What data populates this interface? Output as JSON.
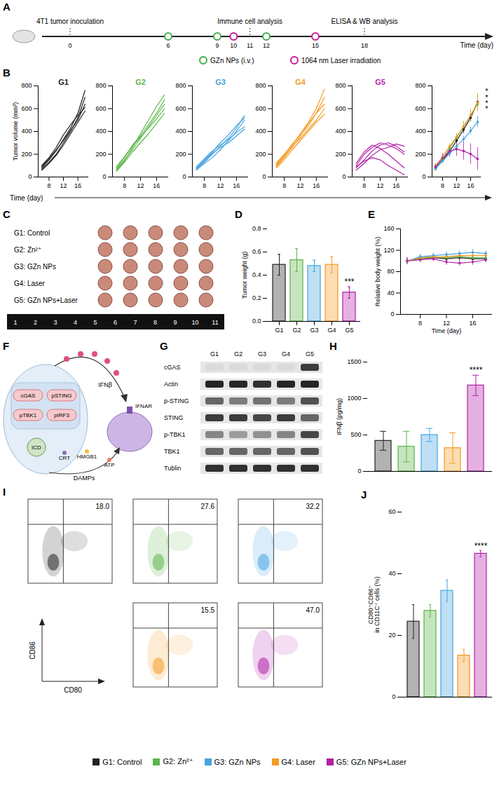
{
  "timeline": {
    "panel": "A",
    "xlabel": "Time (day)",
    "ticks": [
      0,
      6,
      9,
      10,
      11,
      12,
      15,
      18
    ],
    "events": [
      {
        "day": 0,
        "label": "4T1 tumor inoculation"
      },
      {
        "day": 11,
        "label": "Immune cell analysis"
      },
      {
        "day": 18,
        "label": "ELISA & WB analysis"
      }
    ],
    "series": [
      {
        "name": "GZn NPs (i.v.)",
        "color": "#3fae49",
        "days": [
          6,
          9,
          12
        ]
      },
      {
        "name": "1064 nm Laser irradiation",
        "color": "#c2189f",
        "days": [
          10,
          15
        ]
      }
    ]
  },
  "chart_data": [
    {
      "panel": "B",
      "type": "line",
      "title": "G1",
      "color": "#222222",
      "ylabel": "Tumor volume (mm³)",
      "xlabel": "Time (day)",
      "x": [
        6,
        8,
        10,
        12,
        14,
        16,
        18
      ],
      "xlim": [
        5,
        19
      ],
      "xticks": [
        8,
        12,
        16
      ],
      "ylim": [
        0,
        800
      ],
      "yticks": [
        0,
        200,
        400,
        600,
        800
      ],
      "series": [
        {
          "values": [
            80,
            150,
            230,
            330,
            430,
            560,
            760
          ]
        },
        {
          "values": [
            70,
            130,
            200,
            300,
            400,
            520,
            700
          ]
        },
        {
          "values": [
            90,
            160,
            240,
            320,
            410,
            500,
            640
          ]
        },
        {
          "values": [
            100,
            170,
            260,
            370,
            460,
            540,
            610
          ]
        },
        {
          "values": [
            60,
            120,
            190,
            280,
            380,
            480,
            580
          ]
        }
      ]
    },
    {
      "panel": "B",
      "type": "line",
      "title": "G2",
      "color": "#5bb548",
      "x": [
        6,
        8,
        10,
        12,
        14,
        16,
        18
      ],
      "xlim": [
        5,
        19
      ],
      "xticks": [
        8,
        12,
        16
      ],
      "ylim": [
        0,
        800
      ],
      "yticks": [
        0,
        200,
        400,
        600,
        800
      ],
      "series": [
        {
          "values": [
            60,
            140,
            260,
            380,
            500,
            620,
            720
          ]
        },
        {
          "values": [
            80,
            170,
            280,
            360,
            460,
            560,
            680
          ]
        },
        {
          "values": [
            70,
            150,
            240,
            340,
            440,
            540,
            640
          ]
        },
        {
          "values": [
            90,
            180,
            270,
            350,
            430,
            510,
            600
          ]
        },
        {
          "values": [
            50,
            130,
            220,
            300,
            380,
            470,
            560
          ]
        }
      ]
    },
    {
      "panel": "B",
      "type": "line",
      "title": "G3",
      "color": "#45a3e0",
      "x": [
        6,
        8,
        10,
        12,
        14,
        16,
        18
      ],
      "xlim": [
        5,
        19
      ],
      "xticks": [
        8,
        12,
        16
      ],
      "ylim": [
        0,
        800
      ],
      "yticks": [
        0,
        200,
        400,
        600,
        800
      ],
      "series": [
        {
          "values": [
            70,
            130,
            200,
            270,
            340,
            430,
            540
          ]
        },
        {
          "values": [
            80,
            150,
            220,
            300,
            370,
            450,
            520
          ]
        },
        {
          "values": [
            60,
            120,
            170,
            240,
            320,
            400,
            500
          ]
        },
        {
          "values": [
            90,
            160,
            230,
            280,
            330,
            390,
            440
          ]
        },
        {
          "values": [
            70,
            140,
            210,
            260,
            300,
            360,
            420
          ]
        }
      ]
    },
    {
      "panel": "B",
      "type": "line",
      "title": "G4",
      "color": "#f59a23",
      "x": [
        6,
        8,
        10,
        12,
        14,
        16,
        18
      ],
      "xlim": [
        5,
        19
      ],
      "xticks": [
        8,
        12,
        16
      ],
      "ylim": [
        0,
        800
      ],
      "yticks": [
        0,
        200,
        400,
        600,
        800
      ],
      "series": [
        {
          "values": [
            100,
            180,
            280,
            380,
            480,
            600,
            770
          ]
        },
        {
          "values": [
            120,
            200,
            290,
            370,
            450,
            560,
            700
          ]
        },
        {
          "values": [
            90,
            170,
            260,
            360,
            470,
            560,
            640
          ]
        },
        {
          "values": [
            110,
            190,
            270,
            340,
            420,
            500,
            600
          ]
        },
        {
          "values": [
            80,
            150,
            240,
            320,
            400,
            480,
            550
          ]
        }
      ]
    },
    {
      "panel": "B",
      "type": "line",
      "title": "G5",
      "color": "#b11fa8",
      "x": [
        6,
        8,
        10,
        12,
        14,
        16,
        18
      ],
      "xlim": [
        5,
        19
      ],
      "xticks": [
        8,
        12,
        16
      ],
      "ylim": [
        0,
        800
      ],
      "yticks": [
        0,
        200,
        400,
        600,
        800
      ],
      "series": [
        {
          "values": [
            100,
            200,
            260,
            300,
            280,
            250,
            200
          ]
        },
        {
          "values": [
            80,
            150,
            230,
            280,
            300,
            270,
            220
          ]
        },
        {
          "values": [
            120,
            220,
            280,
            250,
            200,
            140,
            80
          ]
        },
        {
          "values": [
            60,
            120,
            190,
            240,
            260,
            290,
            270
          ]
        },
        {
          "values": [
            90,
            140,
            170,
            150,
            100,
            60,
            20
          ]
        }
      ]
    },
    {
      "panel": "B",
      "type": "line",
      "marker": "circle",
      "annotations": [
        "*",
        "*",
        "*",
        "*"
      ],
      "x": [
        6,
        8,
        10,
        12,
        14,
        16,
        18
      ],
      "xlim": [
        5,
        19
      ],
      "xticks": [
        8,
        12,
        16
      ],
      "ylim": [
        0,
        800
      ],
      "yticks": [
        0,
        200,
        400,
        600,
        800
      ],
      "series": [
        {
          "color": "#222222",
          "values": [
            80,
            146,
            224,
            320,
            416,
            520,
            658
          ],
          "errors": [
            15,
            20,
            30,
            35,
            35,
            35,
            70
          ]
        },
        {
          "color": "#5bb548",
          "values": [
            70,
            154,
            254,
            346,
            442,
            540,
            640
          ],
          "errors": [
            15,
            20,
            25,
            35,
            45,
            55,
            60
          ]
        },
        {
          "color": "#45a3e0",
          "values": [
            74,
            140,
            206,
            270,
            332,
            406,
            484
          ],
          "errors": [
            10,
            15,
            20,
            25,
            30,
            35,
            50
          ]
        },
        {
          "color": "#f59a23",
          "values": [
            100,
            178,
            268,
            354,
            444,
            540,
            652
          ],
          "errors": [
            15,
            20,
            20,
            25,
            35,
            45,
            80
          ]
        },
        {
          "color": "#b11fa8",
          "values": [
            90,
            166,
            226,
            244,
            228,
            202,
            158
          ],
          "errors": [
            25,
            40,
            50,
            60,
            80,
            90,
            100
          ]
        }
      ]
    },
    {
      "panel": "D",
      "type": "bar",
      "ylabel": "Tumor weight (g)",
      "categories": [
        "G1",
        "G2",
        "G3",
        "G4",
        "G5"
      ],
      "values": [
        0.49,
        0.53,
        0.48,
        0.49,
        0.25
      ],
      "errors": [
        0.09,
        0.1,
        0.05,
        0.07,
        0.05
      ],
      "colors": [
        "#222222",
        "#5bb548",
        "#45a3e0",
        "#f59a23",
        "#b11fa8"
      ],
      "ylim": [
        0,
        0.8
      ],
      "yticks": [
        {
          "value": 0,
          "label": "0.0"
        },
        0.2,
        0.4,
        0.6,
        0.8
      ],
      "annotations": [
        {
          "index": 4,
          "text": "***"
        }
      ]
    },
    {
      "panel": "E",
      "type": "line",
      "marker": "circle",
      "ylabel": "Relative body weight (%)",
      "xlabel": "Time (day)",
      "x": [
        6,
        8,
        10,
        12,
        14,
        16,
        18
      ],
      "xlim": [
        5,
        19
      ],
      "xticks": [
        8,
        12,
        16
      ],
      "ylim": [
        0,
        160
      ],
      "yticks": [
        0,
        40,
        80,
        120,
        160
      ],
      "series": [
        {
          "color": "#222222",
          "values": [
            100,
            104,
            106,
            104,
            106,
            104,
            104
          ],
          "errors": [
            6,
            5,
            5,
            6,
            5,
            6,
            5
          ]
        },
        {
          "color": "#5bb548",
          "values": [
            100,
            106,
            108,
            106,
            108,
            106,
            106
          ],
          "errors": [
            6,
            5,
            5,
            6,
            5,
            6,
            5
          ]
        },
        {
          "color": "#45a3e0",
          "values": [
            100,
            108,
            110,
            112,
            114,
            116,
            114
          ],
          "errors": [
            6,
            5,
            5,
            6,
            5,
            6,
            5
          ]
        },
        {
          "color": "#f59a23",
          "values": [
            100,
            105,
            107,
            108,
            110,
            110,
            110
          ],
          "errors": [
            6,
            5,
            5,
            6,
            5,
            6,
            5
          ]
        },
        {
          "color": "#b11fa8",
          "values": [
            100,
            102,
            104,
            98,
            96,
            98,
            102
          ],
          "errors": [
            6,
            5,
            5,
            6,
            5,
            6,
            5
          ]
        }
      ]
    },
    {
      "panel": "H",
      "type": "bar",
      "ylabel": "IFNβ (pg/mg)",
      "categories": [
        null,
        null,
        null,
        null,
        null
      ],
      "tick_labels": "y",
      "values": [
        420,
        340,
        500,
        320,
        1180
      ],
      "errors": [
        130,
        210,
        90,
        210,
        140
      ],
      "colors": [
        "#222222",
        "#5bb548",
        "#45a3e0",
        "#f59a23",
        "#b11fa8"
      ],
      "ylim": [
        0,
        1500
      ],
      "yticks": [
        0,
        500,
        1000,
        1500
      ],
      "annotations": [
        {
          "index": 4,
          "text": "****"
        }
      ]
    },
    {
      "panel": "J",
      "type": "bar",
      "ylabel": "CD80⁺CD86⁺ in CD11C⁺ cells (%)",
      "categories": [
        null,
        null,
        null,
        null,
        null
      ],
      "tick_labels": "y",
      "values": [
        24.5,
        28,
        34.5,
        13.5,
        46.5
      ],
      "errors": [
        5.5,
        2,
        3.5,
        2,
        1
      ],
      "colors": [
        "#222222",
        "#5bb548",
        "#45a3e0",
        "#f59a23",
        "#b11fa8"
      ],
      "ylim": [
        0,
        60
      ],
      "yticks": [
        0,
        20,
        40,
        60
      ],
      "annotations": [
        {
          "index": 4,
          "text": "****"
        }
      ]
    }
  ],
  "tumor_photo": {
    "panel": "C",
    "groups": [
      "G1: Control",
      "G2: Zn²⁺",
      "G3: GZn NPs",
      "G4: Laser",
      "G5: GZn NPs+Laser"
    ],
    "ruler": [
      1,
      2,
      3,
      4,
      5,
      6,
      7,
      8,
      9,
      10,
      11
    ]
  },
  "pathway_diagram": {
    "panel": "F",
    "signaling": [
      "cGAS",
      "pSTING",
      "pTBK1",
      "pIRF3"
    ],
    "icd": "ICD",
    "cytokine": "IFNβ",
    "receptor": "IFNAR",
    "damps": [
      "CRT",
      "HMGB1",
      "ATP"
    ],
    "damps_label": "DAMPs"
  },
  "western_blot": {
    "panel": "G",
    "lanes": [
      "G1",
      "G2",
      "G3",
      "G4",
      "G5"
    ],
    "rows": [
      {
        "label": "cGAS",
        "bands": [
          0.05,
          0.05,
          0.05,
          0.05,
          0.8
        ]
      },
      {
        "label": "Actin",
        "bands": [
          0.9,
          0.9,
          0.85,
          0.9,
          0.9
        ]
      },
      {
        "label": "p-STING",
        "bands": [
          0.6,
          0.5,
          0.55,
          0.5,
          0.7
        ]
      },
      {
        "label": "STING",
        "bands": [
          0.8,
          0.8,
          0.75,
          0.8,
          0.6
        ]
      },
      {
        "label": "p-TBK1",
        "bands": [
          0.45,
          0.35,
          0.4,
          0.45,
          0.75
        ]
      },
      {
        "label": "TBK1",
        "bands": [
          0.6,
          0.6,
          0.6,
          0.6,
          0.7
        ]
      },
      {
        "label": "Tublin",
        "bands": [
          0.85,
          0.85,
          0.85,
          0.85,
          0.85
        ]
      }
    ]
  },
  "flow_cytometry": {
    "panel": "I",
    "xlabel": "CD80",
    "ylabel": "CD86",
    "values": [
      18,
      27.6,
      32.2,
      15.5,
      47
    ],
    "value_labels": [
      "18.0",
      "27.6",
      "32.2",
      "15.5",
      "47.0"
    ],
    "colors": [
      "#222222",
      "#5bb548",
      "#45a3e0",
      "#f59a23",
      "#b11fa8"
    ]
  },
  "group_legend": [
    {
      "name": "G1: Control",
      "color": "#222222"
    },
    {
      "name": "G2: Zn²⁺",
      "color": "#5bb548"
    },
    {
      "name": "G3: GZn NPs",
      "color": "#45a3e0"
    },
    {
      "name": "G4: Laser",
      "color": "#f59a23"
    },
    {
      "name": "G5: GZn NPs+Laser",
      "color": "#b11fa8"
    }
  ]
}
